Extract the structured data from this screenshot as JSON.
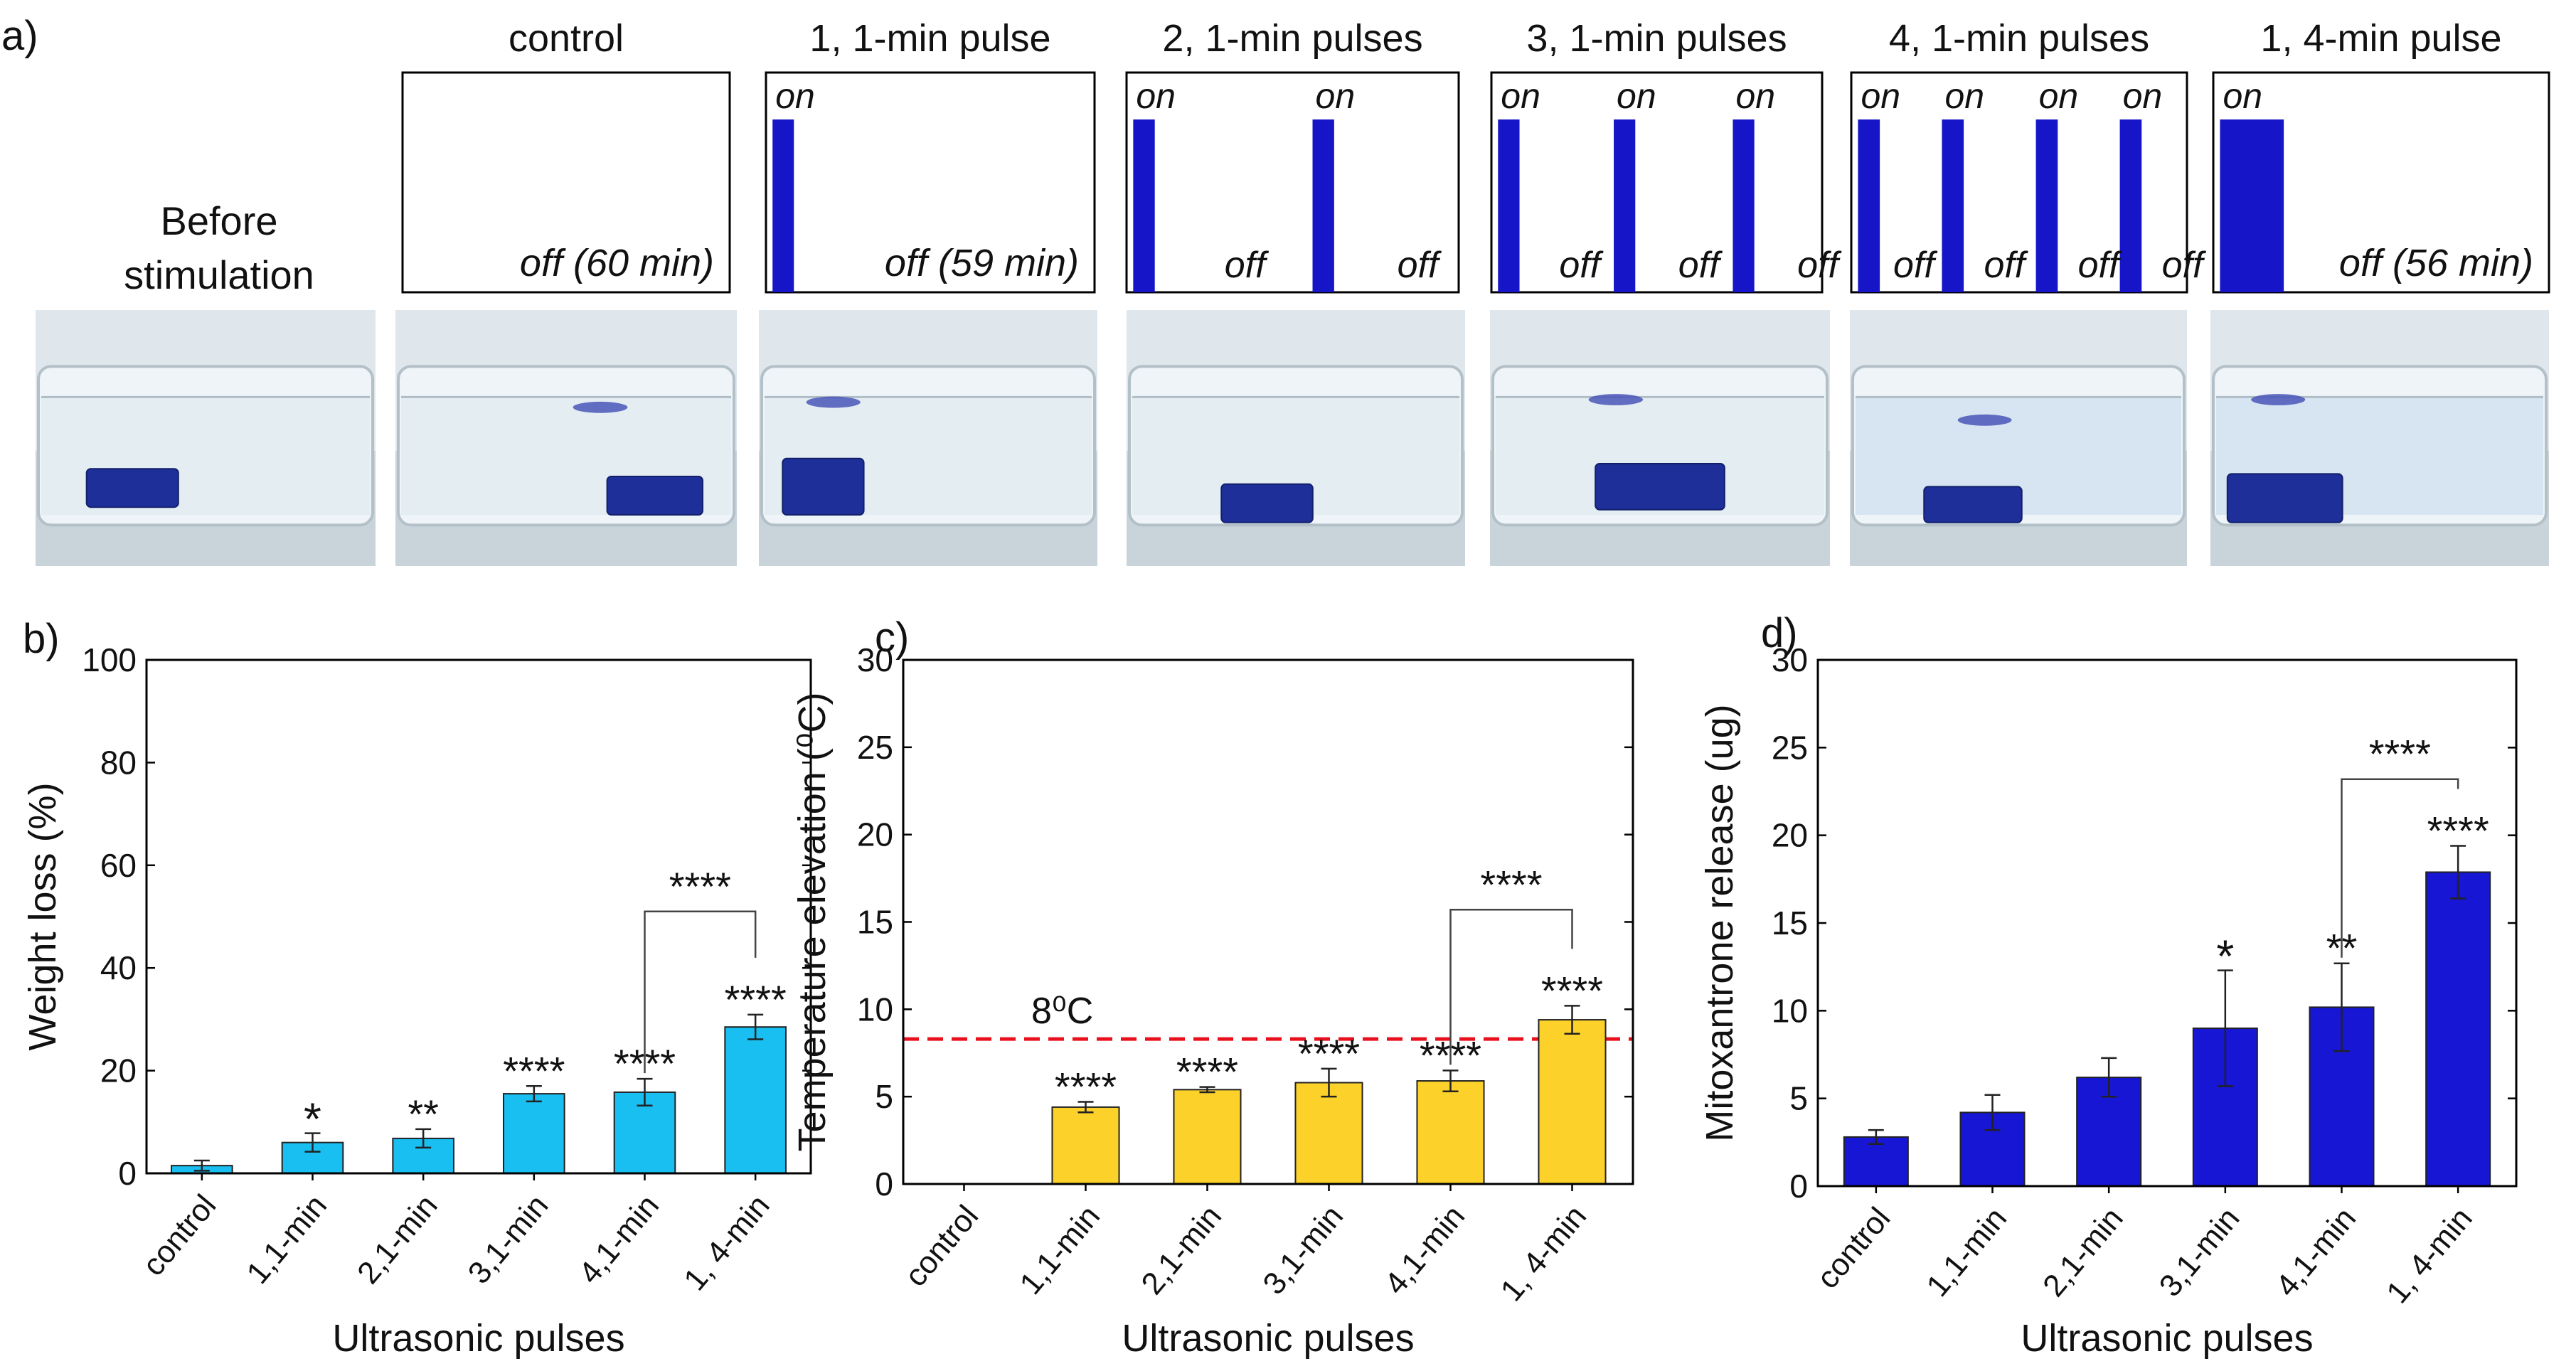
{
  "colors": {
    "pulse": "#1616c8",
    "bar_b": "#18bff0",
    "bar_c": "#fcd22a",
    "bar_d": "#1616d4",
    "threshold": "#e8101c",
    "text": "#111111"
  },
  "panel_a": {
    "label": "a)",
    "before_label_1": "Before",
    "before_label_2": "stimulation",
    "on_label": "on",
    "off_label": "off",
    "schemes": [
      {
        "title": "control",
        "off_text": "off (60 min)",
        "pulse_count": 0,
        "pulse_minutes": 0
      },
      {
        "title": "1, 1-min pulse",
        "off_text": "off (59 min)",
        "pulse_count": 1,
        "pulse_minutes": 1
      },
      {
        "title": "2, 1-min pulses",
        "off_text": "",
        "pulse_count": 2,
        "pulse_minutes": 1
      },
      {
        "title": "3, 1-min pulses",
        "off_text": "",
        "pulse_count": 3,
        "pulse_minutes": 1
      },
      {
        "title": "4, 1-min pulses",
        "off_text": "",
        "pulse_count": 4,
        "pulse_minutes": 1
      },
      {
        "title": "1, 4-min pulse",
        "off_text": "off (56 min)",
        "pulse_count": 1,
        "pulse_minutes": 4
      }
    ]
  },
  "chart_data": [
    {
      "panel": "b)",
      "type": "bar",
      "categories": [
        "control",
        "1,1-min",
        "2,1-min",
        "3,1-min",
        "4,1-min",
        "1, 4-min"
      ],
      "values": [
        1.5,
        6,
        6.8,
        15.5,
        15.8,
        28.5
      ],
      "errors": [
        1,
        1.8,
        1.8,
        1.5,
        2.6,
        2.4
      ],
      "significance": [
        "",
        "*",
        "**",
        "****",
        "****",
        "****"
      ],
      "comparison": {
        "from": 4,
        "to": 5,
        "label": "****",
        "y": 51
      },
      "xlabel": "Ultrasonic pulses",
      "ylabel": "Weight loss (%)",
      "ylim": [
        0,
        100
      ],
      "yticks": [
        0,
        20,
        40,
        60,
        80,
        100
      ],
      "color_key": "bar_b"
    },
    {
      "panel": "c)",
      "type": "bar",
      "categories": [
        "control",
        "1,1-min",
        "2,1-min",
        "3,1-min",
        "4,1-min",
        "1, 4-min"
      ],
      "values": [
        0,
        4.4,
        5.4,
        5.8,
        5.9,
        9.4
      ],
      "errors": [
        0,
        0.3,
        0.15,
        0.8,
        0.6,
        0.8
      ],
      "significance": [
        "",
        "****",
        "****",
        "****",
        "****",
        "****"
      ],
      "comparison": {
        "from": 4,
        "to": 5,
        "label": "****",
        "y": 15.7
      },
      "threshold": {
        "value": 8.3,
        "label": "8⁰C"
      },
      "xlabel": "Ultrasonic pulses",
      "ylabel": "Temperature elevation (⁰C)",
      "ylim": [
        0,
        30
      ],
      "yticks": [
        0,
        5,
        10,
        15,
        20,
        25,
        30
      ],
      "color_key": "bar_c"
    },
    {
      "panel": "d)",
      "type": "bar",
      "categories": [
        "control",
        "1,1-min",
        "2,1-min",
        "3,1-min",
        "4,1-min",
        "1, 4-min"
      ],
      "values": [
        2.8,
        4.2,
        6.2,
        9,
        10.2,
        17.9
      ],
      "errors": [
        0.4,
        1,
        1.1,
        3.3,
        2.5,
        1.5
      ],
      "significance": [
        "",
        "",
        "",
        "*",
        "**",
        "****"
      ],
      "comparison": {
        "from": 4,
        "to": 5,
        "label": "****",
        "y": 23.2
      },
      "xlabel": "Ultrasonic pulses",
      "ylabel": "Mitoxantrone release (ug)",
      "ylim": [
        0,
        30
      ],
      "yticks": [
        0,
        5,
        10,
        15,
        20,
        25,
        30
      ],
      "color_key": "bar_d"
    }
  ]
}
